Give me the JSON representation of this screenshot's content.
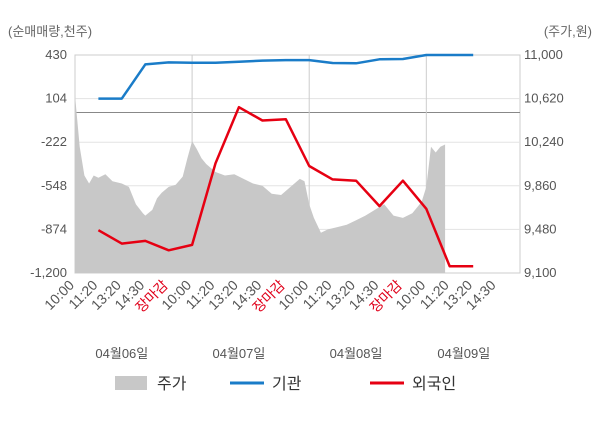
{
  "chart_data": {
    "type": "line",
    "left_axis_label": "(순매매량,천주)",
    "right_axis_label": "(주가,원)",
    "left_ticks": [
      "430",
      "104",
      "-222",
      "-548",
      "-874",
      "-1,200"
    ],
    "right_ticks": [
      "11,000",
      "10,620",
      "10,240",
      "9,860",
      "9,480",
      "9,100"
    ],
    "left_ylim": [
      -1200,
      430
    ],
    "right_ylim": [
      9100,
      11000
    ],
    "x_tick_labels": [
      "10:00",
      "11:20",
      "13:20",
      "14:30",
      "장마감",
      "10:00",
      "11:20",
      "13:20",
      "14:30",
      "장마감",
      "10:00",
      "11:20",
      "13:20",
      "14:30",
      "장마감",
      "10:00",
      "11:20",
      "13:20",
      "14:30"
    ],
    "close_marker_label": "장마감",
    "dates": [
      "04월06일",
      "04월07일",
      "04월08일",
      "04월09일"
    ],
    "x_range": [
      0,
      19
    ],
    "grid": true,
    "legend_position": "bottom",
    "legend": [
      {
        "label": "주가",
        "color": "#c8c8c8",
        "kind": "area"
      },
      {
        "label": "기관",
        "color": "#1a7cc8",
        "kind": "line"
      },
      {
        "label": "외국인",
        "color": "#e60012",
        "kind": "line"
      }
    ],
    "series": [
      {
        "name": "기관",
        "axis": "left",
        "color": "#1a7cc8",
        "x": [
          1,
          2,
          3,
          4,
          5,
          6,
          7,
          8,
          9,
          10,
          11,
          12,
          13,
          14,
          15,
          16,
          17
        ],
        "values": [
          104,
          104,
          360,
          375,
          372,
          372,
          380,
          388,
          392,
          392,
          370,
          368,
          398,
          400,
          430,
          430,
          430
        ]
      },
      {
        "name": "외국인",
        "axis": "left",
        "color": "#e60012",
        "x": [
          1,
          2,
          3,
          4,
          5,
          6,
          7,
          8,
          9,
          10,
          11,
          12,
          13,
          14,
          15,
          16,
          17
        ],
        "values": [
          -880,
          -980,
          -960,
          -1030,
          -990,
          -380,
          40,
          -60,
          -50,
          -400,
          -500,
          -510,
          -700,
          -510,
          -720,
          -1150,
          -1150
        ]
      },
      {
        "name": "주가",
        "axis": "right",
        "color": "#c8c8c8",
        "x": [
          0.0,
          0.2,
          0.4,
          0.6,
          0.8,
          1.0,
          1.3,
          1.6,
          2.0,
          2.3,
          2.6,
          2.9,
          3.0,
          3.3,
          3.5,
          3.7,
          4.0,
          4.3,
          4.6,
          4.8,
          5.0,
          5.2,
          5.4,
          5.6,
          6.0,
          6.4,
          6.8,
          7.2,
          7.6,
          8.0,
          8.4,
          8.8,
          9.2,
          9.6,
          9.8,
          10.0,
          10.2,
          10.5,
          10.8,
          11.2,
          11.6,
          12.0,
          12.4,
          12.8,
          13.2,
          13.6,
          14.0,
          14.4,
          14.8,
          15.0,
          15.2,
          15.4,
          15.6,
          15.8
        ],
        "values": [
          10650,
          10200,
          9950,
          9880,
          9950,
          9930,
          9960,
          9900,
          9880,
          9850,
          9700,
          9620,
          9600,
          9650,
          9750,
          9800,
          9850,
          9870,
          9940,
          10100,
          10250,
          10180,
          10100,
          10050,
          9980,
          9950,
          9960,
          9920,
          9880,
          9860,
          9790,
          9780,
          9850,
          9920,
          9900,
          9700,
          9580,
          9450,
          9480,
          9500,
          9520,
          9560,
          9600,
          9650,
          9700,
          9600,
          9580,
          9620,
          9720,
          9850,
          10200,
          10150,
          10200,
          10220
        ]
      }
    ]
  }
}
